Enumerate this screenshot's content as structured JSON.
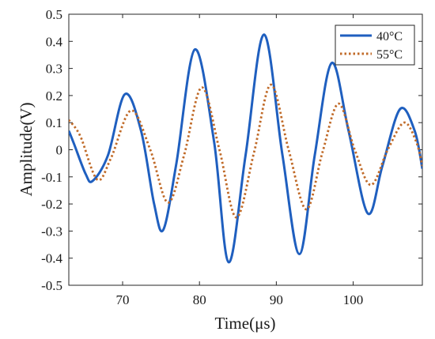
{
  "chart_data": {
    "type": "line",
    "title": "",
    "xlabel": "Time(μs)",
    "ylabel": "Amplitude(V)",
    "xlim": [
      63,
      109
    ],
    "ylim": [
      -0.5,
      0.5
    ],
    "x_ticks": [
      70,
      80,
      90,
      100
    ],
    "y_ticks": [
      -0.5,
      -0.4,
      -0.3,
      -0.2,
      -0.1,
      0,
      0.1,
      0.2,
      0.3,
      0.4,
      0.5
    ],
    "y_tick_labels": [
      "-0.5",
      "-0.4",
      "-0.3",
      "-0.2",
      "-0.1",
      "0",
      "0.1",
      "0.2",
      "0.3",
      "0.4",
      "0.5"
    ],
    "grid": false,
    "legend_position": "top-right",
    "series": [
      {
        "name": "40°C",
        "color": "#1f5fbf",
        "style": "solid",
        "x": [
          63,
          63.7,
          65.2,
          66.1,
          68.1,
          70.3,
          72.4,
          74.1,
          75.3,
          77.0,
          79.4,
          81.9,
          83.8,
          86.0,
          88.4,
          90.8,
          93.0,
          95.0,
          97.2,
          99.4,
          101.9,
          103.8,
          106.1,
          108.0,
          109
        ],
        "y": [
          0.07,
          0.02,
          -0.09,
          -0.115,
          -0.02,
          0.205,
          0.07,
          -0.2,
          -0.295,
          -0.05,
          0.37,
          0.03,
          -0.415,
          -0.02,
          0.425,
          -0.02,
          -0.385,
          -0.02,
          0.32,
          0.07,
          -0.235,
          -0.06,
          0.15,
          0.07,
          -0.07
        ]
      },
      {
        "name": "55°C",
        "color": "#c06a28",
        "style": "dotted",
        "x": [
          63,
          64.5,
          66.7,
          68.5,
          71.1,
          73.6,
          75.9,
          78.0,
          80.3,
          82.6,
          84.8,
          87.1,
          89.3,
          91.6,
          93.9,
          96.0,
          98.1,
          100.2,
          102.3,
          104.5,
          106.6,
          108.2,
          109
        ],
        "y": [
          0.11,
          0.05,
          -0.11,
          -0.03,
          0.145,
          0.0,
          -0.195,
          -0.02,
          0.23,
          0.0,
          -0.25,
          -0.01,
          0.24,
          0.0,
          -0.22,
          -0.01,
          0.17,
          0.0,
          -0.13,
          0.0,
          0.1,
          0.03,
          -0.06
        ]
      }
    ]
  }
}
